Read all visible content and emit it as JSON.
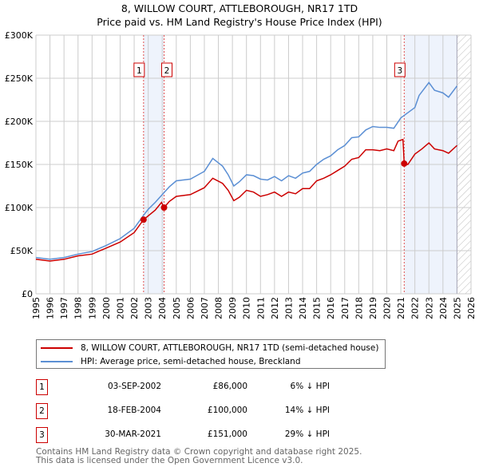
{
  "title": "8, WILLOW COURT, ATTLEBOROUGH, NR17 1TD",
  "subtitle": "Price paid vs. HM Land Registry's House Price Index (HPI)",
  "chart_data": {
    "type": "line",
    "xlim": [
      1995,
      2026
    ],
    "ylim": [
      0,
      300000
    ],
    "x_ticks": [
      "1995",
      "1996",
      "1997",
      "1998",
      "1999",
      "2000",
      "2001",
      "2002",
      "2003",
      "2004",
      "2005",
      "2006",
      "2007",
      "2008",
      "2009",
      "2010",
      "2011",
      "2012",
      "2013",
      "2014",
      "2015",
      "2016",
      "2017",
      "2018",
      "2019",
      "2020",
      "2021",
      "2022",
      "2023",
      "2024",
      "2025",
      "2026"
    ],
    "y_ticks": [
      {
        "v": 0,
        "label": "£0"
      },
      {
        "v": 50000,
        "label": "£50K"
      },
      {
        "v": 100000,
        "label": "£100K"
      },
      {
        "v": 150000,
        "label": "£150K"
      },
      {
        "v": 200000,
        "label": "£200K"
      },
      {
        "v": 250000,
        "label": "£250K"
      },
      {
        "v": 300000,
        "label": "£300K"
      }
    ],
    "grid": true,
    "data_end": 2025.0,
    "series": [
      {
        "name": "8, WILLOW COURT, ATTLEBOROUGH, NR17 1TD (semi-detached house)",
        "color": "#cc0000",
        "x": [
          1995,
          1996,
          1997,
          1998,
          1999,
          2000,
          2001,
          2002,
          2002.67,
          2003.5,
          2003.95,
          2004.13,
          2004.5,
          2005,
          2006,
          2007,
          2007.6,
          2008.3,
          2008.7,
          2009.1,
          2009.5,
          2010,
          2010.5,
          2011,
          2011.5,
          2012,
          2012.5,
          2013,
          2013.5,
          2014,
          2014.5,
          2015,
          2015.5,
          2016,
          2016.5,
          2017,
          2017.5,
          2018,
          2018.5,
          2019,
          2019.5,
          2020,
          2020.5,
          2020.8,
          2021.15,
          2021.24,
          2021.5,
          2022,
          2022.5,
          2023,
          2023.4,
          2024,
          2024.4,
          2025
        ],
        "y": [
          40000,
          38000,
          40000,
          44000,
          46000,
          53000,
          60000,
          71000,
          86000,
          97000,
          106000,
          100000,
          107000,
          113000,
          115000,
          123000,
          134000,
          128000,
          120000,
          108000,
          112000,
          120000,
          118000,
          113000,
          115000,
          118000,
          113000,
          118000,
          116000,
          122000,
          122000,
          131000,
          134000,
          138000,
          143000,
          148000,
          156000,
          158000,
          167000,
          167000,
          166000,
          168000,
          166000,
          177000,
          179000,
          151000,
          150000,
          162000,
          168000,
          175000,
          168000,
          166000,
          163000,
          172000
        ]
      },
      {
        "name": "HPI: Average price, semi-detached house, Breckland",
        "color": "#5b8fd4",
        "x": [
          1995,
          1996,
          1997,
          1998,
          1999,
          2000,
          2001,
          2002,
          2002.67,
          2003,
          2003.5,
          2004,
          2004.5,
          2005,
          2006,
          2007,
          2007.6,
          2008.3,
          2008.7,
          2009.1,
          2009.5,
          2010,
          2010.5,
          2011,
          2011.5,
          2012,
          2012.5,
          2013,
          2013.5,
          2014,
          2014.5,
          2015,
          2015.5,
          2016,
          2016.5,
          2017,
          2017.5,
          2018,
          2018.5,
          2019,
          2019.5,
          2020,
          2020.5,
          2021,
          2021.5,
          2022,
          2022.3,
          2023,
          2023.4,
          2024,
          2024.4,
          2025
        ],
        "y": [
          42000,
          40000,
          42000,
          46000,
          49000,
          56000,
          64000,
          76000,
          91000,
          98000,
          106000,
          115000,
          124000,
          131000,
          133000,
          142000,
          157000,
          148000,
          138000,
          125000,
          130000,
          138000,
          137000,
          133000,
          132000,
          136000,
          131000,
          137000,
          134000,
          140000,
          142000,
          150000,
          156000,
          160000,
          167000,
          172000,
          181000,
          182000,
          190000,
          194000,
          193000,
          193000,
          192000,
          204000,
          210000,
          216000,
          230000,
          245000,
          236000,
          233000,
          228000,
          241000
        ]
      }
    ],
    "sales": [
      {
        "label": "1",
        "x": 2002.67,
        "y": 86000,
        "date": "03-SEP-2002",
        "price": "£86,000",
        "hpi": "6% ↓ HPI"
      },
      {
        "label": "2",
        "x": 2004.13,
        "y": 100000,
        "date": "18-FEB-2004",
        "price": "£100,000",
        "hpi": "14% ↓ HPI"
      },
      {
        "label": "3",
        "x": 2021.24,
        "y": 151000,
        "date": "30-MAR-2021",
        "price": "£151,000",
        "hpi": "29% ↓ HPI"
      }
    ]
  },
  "footer": [
    "Contains HM Land Registry data © Crown copyright and database right 2025.",
    "This data is licensed under the Open Government Licence v3.0."
  ]
}
